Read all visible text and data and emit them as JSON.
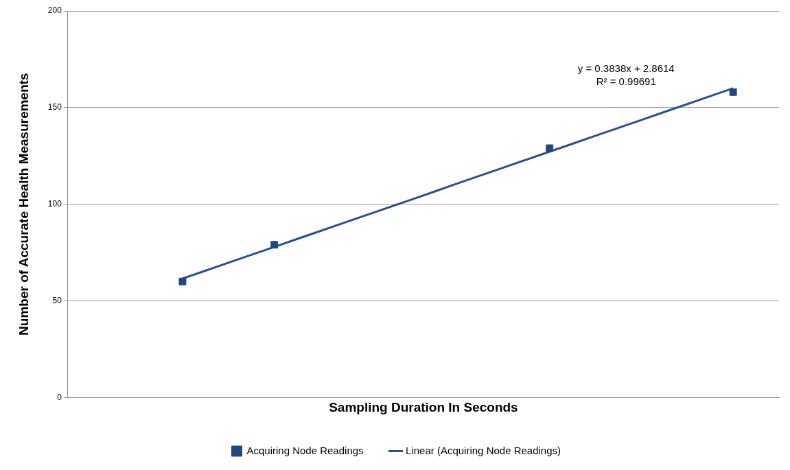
{
  "chart_data": {
    "type": "scatter",
    "xlabel": "Sampling Duration In Seconds",
    "ylabel": "Number of Accurate Health Measurements",
    "categories": [
      null,
      null,
      null,
      null,
      null,
      null,
      null,
      null,
      null,
      null,
      null,
      null,
      null,
      null,
      null,
      null,
      null,
      null,
      null,
      null,
      null,
      null,
      null,
      null,
      null,
      null,
      null,
      null,
      null,
      null,
      null,
      null
    ],
    "ylim": [
      0,
      200
    ],
    "yticks": [
      0,
      50,
      100,
      150,
      200
    ],
    "tick_labels": "y",
    "grid": "y",
    "legend": "bottom",
    "marker": "square",
    "series": [
      {
        "name": "Acquiring Node Readings",
        "color": "#21497f",
        "values": [
          null,
          null,
          null,
          null,
          null,
          60,
          null,
          null,
          null,
          79,
          null,
          null,
          null,
          null,
          null,
          null,
          null,
          null,
          null,
          null,
          null,
          129,
          null,
          null,
          null,
          null,
          null,
          null,
          null,
          158,
          null,
          null
        ]
      },
      {
        "name": "Linear (Acquiring Node Readings)",
        "type": "line",
        "color": "#2a5189",
        "values": [
          null,
          null,
          null,
          null,
          null,
          61.5,
          65.6,
          69.7,
          73.8,
          77.9,
          82.0,
          86.1,
          90.2,
          94.3,
          98.4,
          102.5,
          106.6,
          110.8,
          114.9,
          119.0,
          123.1,
          127.2,
          131.3,
          135.4,
          139.5,
          143.6,
          147.7,
          151.8,
          155.9,
          160,
          null,
          null
        ],
        "marker": "none",
        "line_style": "solid"
      }
    ],
    "annotations": [
      "y = 0.3838x + 2.8614",
      "R² = 0.99691"
    ]
  }
}
